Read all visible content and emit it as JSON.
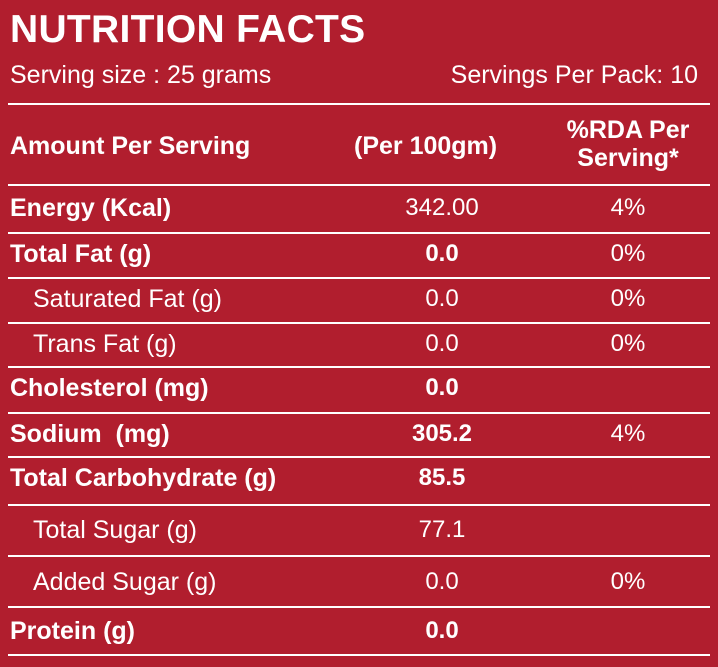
{
  "title": "NUTRITION FACTS",
  "serving_size": "Serving size : 25 grams",
  "servings_per_pack": "Servings Per Pack: 10",
  "header": {
    "amount": "Amount Per Serving",
    "per100": "(Per 100gm)",
    "rda_line1": "%RDA Per",
    "rda_line2": "Serving*"
  },
  "rows": [
    {
      "name": "Energy (Kcal)",
      "value": "342.00",
      "rda": "4%"
    },
    {
      "name": "Total Fat (g)",
      "value": "0.0",
      "rda": "0%"
    },
    {
      "name": "Saturated Fat (g)",
      "value": "0.0",
      "rda": "0%"
    },
    {
      "name": "Trans Fat (g)",
      "value": "0.0",
      "rda": "0%"
    },
    {
      "name": "Cholesterol (mg)",
      "value": "0.0",
      "rda": ""
    },
    {
      "name": "Sodium  (mg)",
      "value": "305.2",
      "rda": "4%"
    },
    {
      "name": "Total Carbohydrate (g)",
      "value": "85.5",
      "rda": ""
    },
    {
      "name": "Total Sugar (g)",
      "value": "77.1",
      "rda": ""
    },
    {
      "name": "Added Sugar (g)",
      "value": "0.0",
      "rda": "0%"
    },
    {
      "name": "Protein (g)",
      "value": "0.0",
      "rda": ""
    }
  ],
  "colors": {
    "background": "#b11e2e",
    "text": "#ffffff",
    "rule": "#ffffff"
  }
}
